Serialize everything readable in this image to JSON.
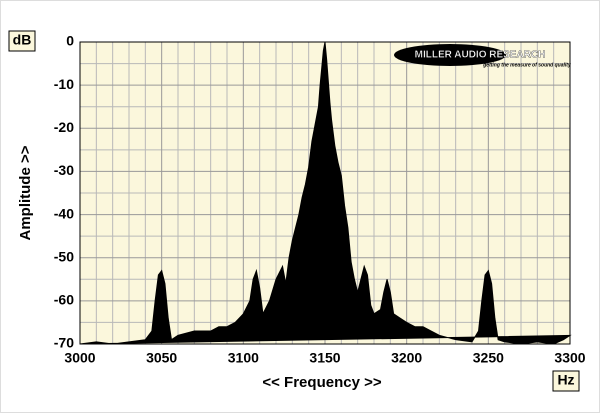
{
  "chart_data": {
    "type": "area",
    "y_unit": "dB",
    "x_unit": "Hz",
    "ylabel": "Amplitude >>",
    "xlabel": "<< Frequency >>",
    "logo": "MILLER AUDIO RESEARCH",
    "logo_tagline": "getting the measure of sound quality",
    "color": "#000000",
    "background": "#fbf7dc",
    "grid": true,
    "xlim": [
      3000,
      3300
    ],
    "ylim": [
      -70,
      0
    ],
    "xticks": [
      3000,
      3050,
      3100,
      3150,
      3200,
      3250,
      3300
    ],
    "yticks": [
      0,
      -10,
      -20,
      -30,
      -40,
      -50,
      -60,
      -70
    ],
    "xgrid": [
      3010,
      3020,
      3030,
      3040,
      3060,
      3070,
      3080,
      3090,
      3110,
      3120,
      3130,
      3140,
      3160,
      3170,
      3180,
      3190,
      3210,
      3220,
      3230,
      3240,
      3260,
      3270,
      3280,
      3290
    ],
    "ygrid": [
      -5,
      -15,
      -25,
      -35,
      -45,
      -55,
      -65
    ],
    "x": [
      3000,
      3010,
      3020,
      3030,
      3040,
      3044,
      3046,
      3048,
      3050,
      3052,
      3054,
      3056,
      3060,
      3070,
      3080,
      3085,
      3090,
      3095,
      3100,
      3104,
      3106,
      3108,
      3110,
      3112,
      3116,
      3120,
      3124,
      3126,
      3128,
      3130,
      3134,
      3136,
      3138,
      3140,
      3142,
      3144,
      3146,
      3147,
      3148,
      3149,
      3150,
      3151,
      3152,
      3153,
      3154,
      3156,
      3158,
      3160,
      3162,
      3164,
      3166,
      3168,
      3170,
      3172,
      3174,
      3176,
      3178,
      3180,
      3184,
      3186,
      3188,
      3190,
      3192,
      3196,
      3200,
      3205,
      3210,
      3215,
      3220,
      3230,
      3240,
      3244,
      3246,
      3248,
      3250,
      3252,
      3254,
      3256,
      3260,
      3270,
      3280,
      3290,
      3296,
      3300
    ],
    "values": [
      -70,
      -69.5,
      -70,
      -69.5,
      -69,
      -67,
      -60,
      -54,
      -53,
      -56,
      -64,
      -69,
      -68,
      -67,
      -67,
      -66,
      -66,
      -65,
      -63,
      -60,
      -55,
      -53,
      -57,
      -63,
      -60,
      -55,
      -52,
      -56,
      -50,
      -46,
      -40,
      -36,
      -33,
      -29,
      -23,
      -19,
      -15,
      -10,
      -6,
      -2,
      0,
      -4,
      -9,
      -14,
      -18,
      -24,
      -28,
      -31,
      -38,
      -43,
      -51,
      -55,
      -58,
      -55,
      -52,
      -54,
      -61,
      -63,
      -62,
      -58,
      -55,
      -58,
      -63,
      -64,
      -65,
      -66,
      -66,
      -67,
      -68,
      -69,
      -69.5,
      -67,
      -60,
      -54,
      -53,
      -56,
      -64,
      -69,
      -69.5,
      -70,
      -69.5,
      -70,
      -69,
      -68
    ]
  }
}
